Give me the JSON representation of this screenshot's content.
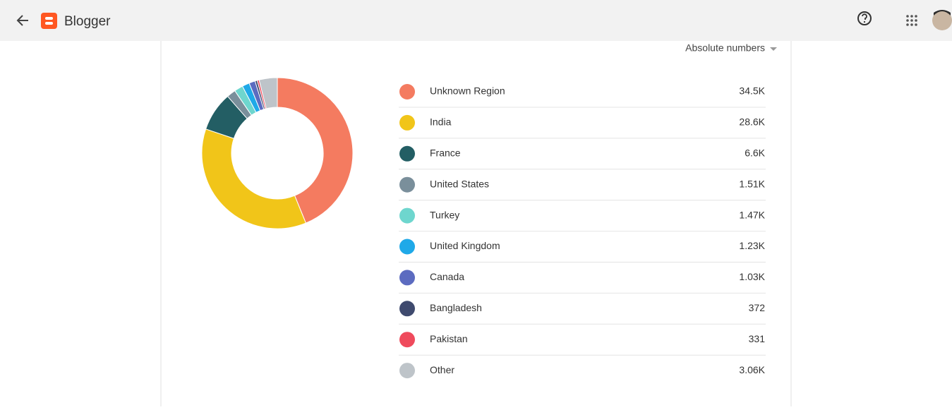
{
  "header": {
    "title": "Blogger"
  },
  "controls": {
    "metric": "Absolute numbers"
  },
  "chart_data": {
    "type": "donut",
    "categories": [
      "Unknown Region",
      "India",
      "France",
      "United States",
      "Turkey",
      "United Kingdom",
      "Canada",
      "Bangladesh",
      "Pakistan",
      "Other"
    ],
    "values": [
      34500,
      28600,
      6600,
      1510,
      1470,
      1230,
      1030,
      372,
      331,
      3060
    ],
    "value_labels": [
      "34.5K",
      "28.6K",
      "6.6K",
      "1.51K",
      "1.47K",
      "1.23K",
      "1.03K",
      "372",
      "331",
      "3.06K"
    ],
    "colors": [
      "#f47b60",
      "#f1c519",
      "#235e64",
      "#7a8f9b",
      "#6ed6ce",
      "#1fa9e8",
      "#5c6bc0",
      "#3f4a6e",
      "#ef4a5c",
      "#bec4c9"
    ]
  }
}
